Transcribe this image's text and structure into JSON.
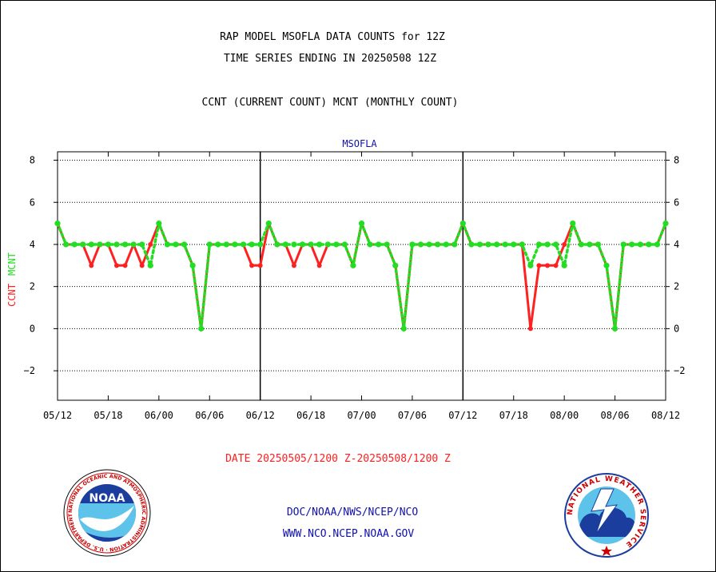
{
  "header": {
    "line1": "RAP MODEL MSOFLA DATA COUNTS for 12Z",
    "line2": "TIME SERIES ENDING IN 20250508 12Z",
    "line3": "CCNT (CURRENT COUNT) MCNT (MONTHLY COUNT)"
  },
  "footer": {
    "date_range": "DATE 20250505/1200 Z-20250508/1200 Z",
    "org": "DOC/NOAA/NWS/NCEP/NCO",
    "url": "WWW.NCO.NCEP.NOAA.GOV"
  },
  "logos": {
    "noaa": {
      "text": "NOAA",
      "ring_text": "NATIONAL OCEANIC AND ATMOSPHERIC ADMINISTRATION · U.S. DEPARTMENT OF COMMERCE"
    },
    "nws": {
      "ring_text": "NATIONAL WEATHER SERVICE"
    }
  },
  "chart_data": {
    "type": "line",
    "title": "MSOFLA",
    "ylabel_ccnt": "CCNT",
    "ylabel_mcnt": "MCNT",
    "ylim": [
      -3.4,
      8.4
    ],
    "yticks": [
      -2,
      0,
      2,
      4,
      6,
      8
    ],
    "xlim": [
      0,
      72
    ],
    "xticks": [
      0,
      6,
      12,
      18,
      24,
      30,
      36,
      42,
      48,
      54,
      60,
      66,
      72
    ],
    "xtick_labels": [
      "05/12",
      "05/18",
      "06/00",
      "06/06",
      "06/12",
      "06/18",
      "07/00",
      "07/06",
      "07/12",
      "07/18",
      "08/00",
      "08/06",
      "08/12"
    ],
    "day_boundaries": [
      24,
      48
    ],
    "grid": true,
    "colors": {
      "ccnt": "#ff2020",
      "mcnt": "#22dd22",
      "title": "#1010b0"
    },
    "series": [
      {
        "name": "CCNT",
        "x": [
          0,
          1,
          2,
          3,
          4,
          5,
          6,
          7,
          8,
          9,
          10,
          11,
          12,
          13,
          14,
          15,
          16,
          17,
          18,
          19,
          20,
          21,
          22,
          23,
          24,
          25,
          26,
          27,
          28,
          29,
          30,
          31,
          32,
          33,
          34,
          35,
          36,
          37,
          38,
          39,
          40,
          41,
          42,
          43,
          44,
          45,
          46,
          47,
          48,
          49,
          50,
          51,
          52,
          53,
          54,
          55,
          56,
          57,
          58,
          59,
          60,
          61,
          62,
          63,
          64,
          65,
          66,
          67,
          68,
          69,
          70,
          71,
          72
        ],
        "y": [
          5,
          4,
          4,
          4,
          3,
          4,
          4,
          3,
          3,
          4,
          3,
          4,
          5,
          4,
          4,
          4,
          3,
          0,
          4,
          4,
          4,
          4,
          4,
          3,
          3,
          5,
          4,
          4,
          3,
          4,
          4,
          3,
          4,
          4,
          4,
          3,
          5,
          4,
          4,
          4,
          3,
          0,
          4,
          4,
          4,
          4,
          4,
          4,
          5,
          4,
          4,
          4,
          4,
          4,
          4,
          4,
          0,
          3,
          3,
          3,
          4,
          5,
          4,
          4,
          4,
          3,
          0,
          4,
          4,
          4,
          4,
          4,
          5
        ]
      },
      {
        "name": "MCNT",
        "x": [
          0,
          1,
          2,
          3,
          4,
          5,
          6,
          7,
          8,
          9,
          10,
          11,
          12,
          13,
          14,
          15,
          16,
          17,
          18,
          19,
          20,
          21,
          22,
          23,
          24,
          25,
          26,
          27,
          28,
          29,
          30,
          31,
          32,
          33,
          34,
          35,
          36,
          37,
          38,
          39,
          40,
          41,
          42,
          43,
          44,
          45,
          46,
          47,
          48,
          49,
          50,
          51,
          52,
          53,
          54,
          55,
          56,
          57,
          58,
          59,
          60,
          61,
          62,
          63,
          64,
          65,
          66,
          67,
          68,
          69,
          70,
          71,
          72
        ],
        "y": [
          5,
          4,
          4,
          4,
          4,
          4,
          4,
          4,
          4,
          4,
          4,
          3,
          5,
          4,
          4,
          4,
          3,
          0,
          4,
          4,
          4,
          4,
          4,
          4,
          4,
          5,
          4,
          4,
          4,
          4,
          4,
          4,
          4,
          4,
          4,
          3,
          5,
          4,
          4,
          4,
          3,
          0,
          4,
          4,
          4,
          4,
          4,
          4,
          5,
          4,
          4,
          4,
          4,
          4,
          4,
          4,
          3,
          4,
          4,
          4,
          3,
          5,
          4,
          4,
          4,
          3,
          0,
          4,
          4,
          4,
          4,
          4,
          5
        ]
      }
    ]
  }
}
